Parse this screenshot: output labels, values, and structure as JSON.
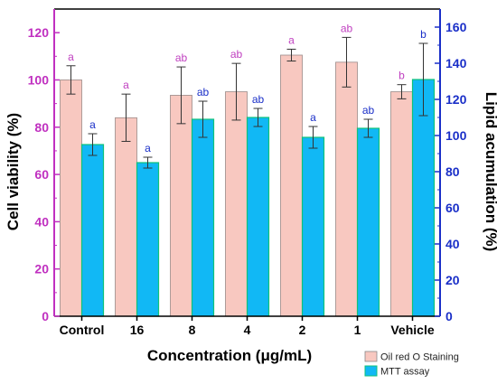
{
  "chart_data": {
    "type": "bar",
    "xlabel": "Concentration (μg/mL)",
    "ylabel_left": "Cell viability (%)",
    "ylabel_right": "Lipid acumulation (%)",
    "categories": [
      "Control",
      "16",
      "8",
      "4",
      "2",
      "1",
      "Vehicle"
    ],
    "ylim_left": [
      0,
      130
    ],
    "ylim_right": [
      0,
      170
    ],
    "yticks_left": [
      0,
      20,
      40,
      60,
      80,
      100,
      120
    ],
    "yticks_right": [
      0,
      20,
      40,
      60,
      80,
      100,
      120,
      140,
      160
    ],
    "legend_position": "bottom-right",
    "series": [
      {
        "name": "Oil red O Staining",
        "axis": "left",
        "values": [
          100,
          84,
          93.5,
          95,
          110.5,
          107.5,
          95
        ],
        "errors": [
          6,
          10,
          12,
          12,
          2.5,
          10.5,
          3
        ],
        "labels": [
          "a",
          "a",
          "ab",
          "ab",
          "a",
          "ab",
          "b"
        ]
      },
      {
        "name": "MTT assay",
        "axis": "right",
        "values": [
          95,
          85,
          109,
          110,
          99,
          104,
          131
        ],
        "errors": [
          6,
          3,
          10,
          5,
          6,
          5,
          20
        ],
        "labels": [
          "a",
          "a",
          "ab",
          "ab",
          "a",
          "ab",
          "b"
        ]
      }
    ],
    "colors": {
      "oil_fill": "#f8c8c0",
      "mtt_fill": "#11b8f5",
      "mtt_stroke": "#10c27a",
      "left_axis": "#c030c0",
      "right_axis": "#1a2fc8",
      "oil_label": "#c040c0",
      "mtt_label": "#1a2fc8"
    }
  }
}
